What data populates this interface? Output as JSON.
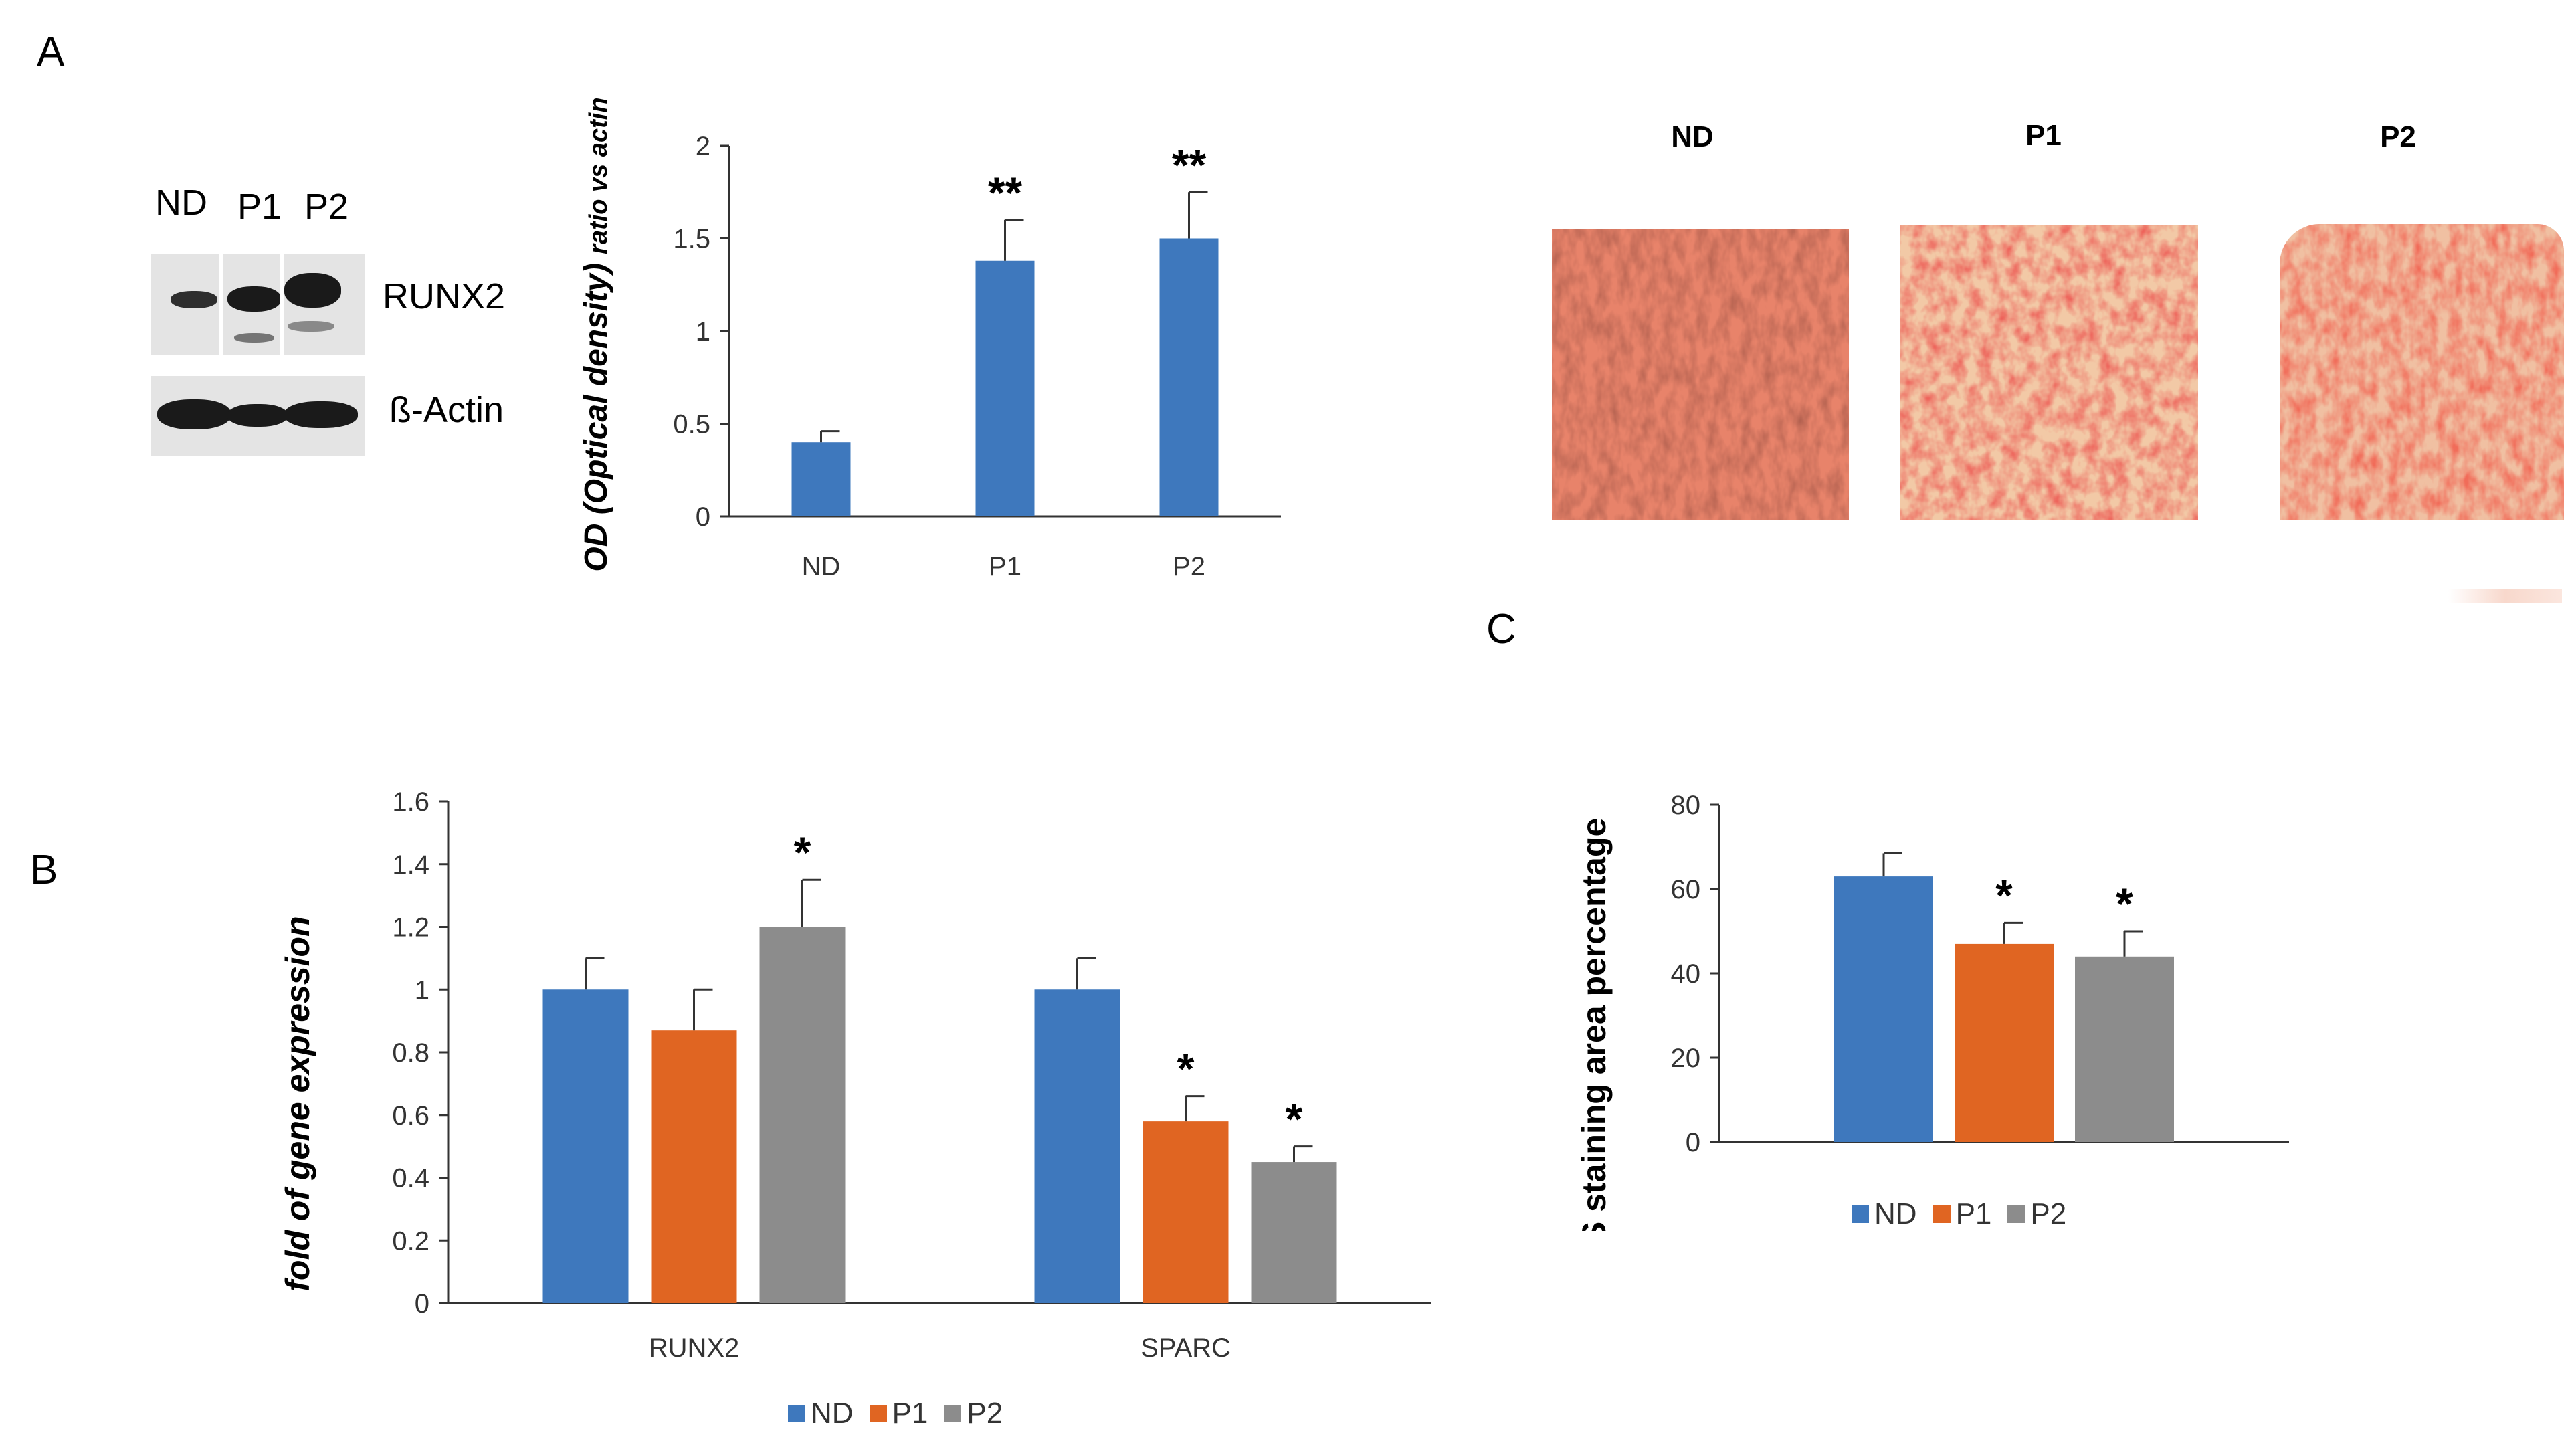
{
  "panels": {
    "a": "A",
    "b": "B",
    "c": "C"
  },
  "western_blot": {
    "lanes": [
      "ND",
      "P1",
      "P2"
    ],
    "proteins": [
      "RUNX2",
      "ß-Actin"
    ]
  },
  "staining": {
    "labels": [
      "ND",
      "P1",
      "P2"
    ]
  },
  "colors": {
    "nd": "#3e78bd",
    "p1": "#e06522",
    "p2": "#8c8c8c"
  },
  "chart_data": [
    {
      "id": "a",
      "type": "bar",
      "categories": [
        "ND",
        "P1",
        "P2"
      ],
      "values": [
        0.4,
        1.38,
        1.5
      ],
      "errors": [
        0.06,
        0.22,
        0.25
      ],
      "annotations": [
        "",
        "**",
        "**"
      ],
      "ylabel": "OD (Optical density)",
      "ylabel_sub": "ratio vs actin",
      "ylim": [
        0,
        2
      ],
      "yticks": [
        "0",
        "0.5",
        "1",
        "1.5",
        "2"
      ]
    },
    {
      "id": "b",
      "type": "bar",
      "categories": [
        "RUNX2",
        "SPARC"
      ],
      "series": [
        {
          "name": "ND",
          "values": [
            1.0,
            1.0
          ],
          "errors": [
            0.1,
            0.1
          ],
          "annotations": [
            "",
            ""
          ]
        },
        {
          "name": "P1",
          "values": [
            0.87,
            0.58
          ],
          "errors": [
            0.13,
            0.08
          ],
          "annotations": [
            "",
            "*"
          ]
        },
        {
          "name": "P2",
          "values": [
            1.2,
            0.45
          ],
          "errors": [
            0.15,
            0.05
          ],
          "annotations": [
            "*",
            "*"
          ]
        }
      ],
      "ylabel": "fold of gene expression",
      "ylim": [
        0,
        1.6
      ],
      "yticks": [
        "0",
        "0.2",
        "0.4",
        "0.6",
        "0.8",
        "1",
        "1.2",
        "1.4",
        "1.6"
      ],
      "legend": [
        "ND",
        "P1",
        "P2"
      ]
    },
    {
      "id": "c",
      "type": "bar",
      "categories": [
        ""
      ],
      "series": [
        {
          "name": "ND",
          "values": [
            63
          ],
          "errors": [
            5.5
          ],
          "annotations": [
            ""
          ]
        },
        {
          "name": "P1",
          "values": [
            47
          ],
          "errors": [
            5
          ],
          "annotations": [
            "*"
          ]
        },
        {
          "name": "P2",
          "values": [
            44
          ],
          "errors": [
            6
          ],
          "annotations": [
            "*"
          ]
        }
      ],
      "ylabel": "ARS staining area percentage",
      "ylim": [
        0,
        80
      ],
      "yticks": [
        "0",
        "20",
        "40",
        "60",
        "80"
      ],
      "legend": [
        "ND",
        "P1",
        "P2"
      ]
    }
  ]
}
